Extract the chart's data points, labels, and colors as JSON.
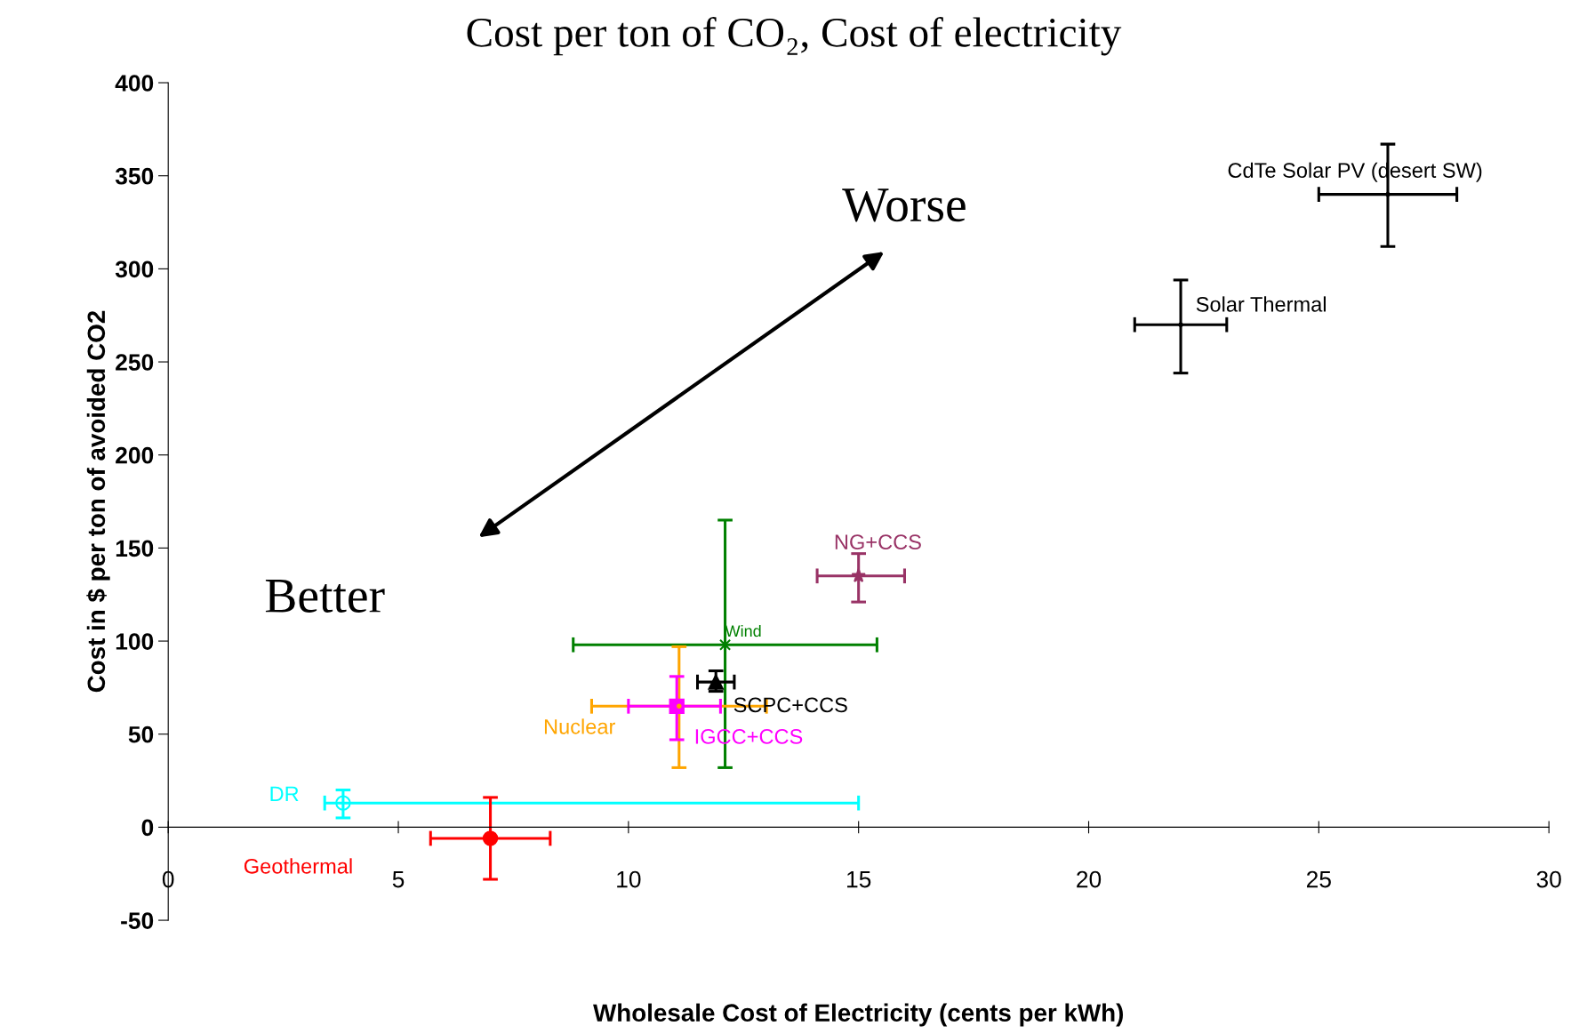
{
  "chart_data": {
    "type": "scatter",
    "title": "Cost per ton of CO₂, Cost of electricity",
    "xlabel": "Wholesale Cost of Electricity (cents per kWh)",
    "ylabel": "Cost in $ per ton of avoided CO2",
    "xlim": [
      0,
      30
    ],
    "ylim": [
      -50,
      400
    ],
    "xticks": [
      0,
      5,
      10,
      15,
      20,
      25,
      30
    ],
    "yticks": [
      -50,
      0,
      50,
      100,
      150,
      200,
      250,
      300,
      350,
      400
    ],
    "legend": false,
    "annotations": [
      "Worse",
      "Better"
    ],
    "series": [
      {
        "name": "CdTe Solar PV (desert SW)",
        "color": "#000000",
        "marker": "none",
        "x": [
          26.5
        ],
        "values": [
          340
        ],
        "errors": [
          [
            312,
            367
          ]
        ],
        "xerrors": [
          [
            25.0,
            28.0
          ]
        ]
      },
      {
        "name": "Solar Thermal",
        "color": "#000000",
        "marker": "none",
        "x": [
          22.0
        ],
        "values": [
          270
        ],
        "errors": [
          [
            244,
            294
          ]
        ],
        "xerrors": [
          [
            21.0,
            23.0
          ]
        ]
      },
      {
        "name": "NG+CCS",
        "color": "#993366",
        "marker": "star",
        "x": [
          15.0
        ],
        "values": [
          135
        ],
        "errors": [
          [
            121,
            147
          ]
        ],
        "xerrors": [
          [
            14.1,
            16.0
          ]
        ]
      },
      {
        "name": "Wind",
        "color": "#008000",
        "marker": "cross",
        "x": [
          12.1
        ],
        "values": [
          98
        ],
        "errors": [
          [
            32,
            165
          ]
        ],
        "xerrors": [
          [
            8.8,
            15.4
          ]
        ]
      },
      {
        "name": "SCPC+CCS",
        "color": "#000000",
        "marker": "triangle",
        "x": [
          11.9
        ],
        "values": [
          78
        ],
        "errors": [
          [
            73,
            84
          ]
        ],
        "xerrors": [
          [
            11.5,
            12.3
          ]
        ]
      },
      {
        "name": "Nuclear",
        "color": "#ffa500",
        "marker": "none",
        "x": [
          11.1
        ],
        "values": [
          65
        ],
        "errors": [
          [
            32,
            97
          ]
        ],
        "xerrors": [
          [
            9.2,
            13.0
          ]
        ]
      },
      {
        "name": "IGCC+CCS",
        "color": "#ff00ff",
        "marker": "square",
        "x": [
          11.05
        ],
        "values": [
          65
        ],
        "errors": [
          [
            47,
            81
          ]
        ],
        "xerrors": [
          [
            10.0,
            12.0
          ]
        ]
      },
      {
        "name": "DR",
        "color": "#00ffff",
        "marker": "circle",
        "x": [
          3.8
        ],
        "values": [
          13
        ],
        "errors": [
          [
            5,
            20
          ]
        ],
        "xerrors": [
          [
            3.4,
            15.0
          ]
        ]
      },
      {
        "name": "Geothermal",
        "color": "#ff0000",
        "marker": "circle",
        "x": [
          7.0
        ],
        "values": [
          -6
        ],
        "errors": [
          [
            -28,
            16
          ]
        ],
        "xerrors": [
          [
            5.7,
            8.3
          ]
        ]
      }
    ]
  }
}
